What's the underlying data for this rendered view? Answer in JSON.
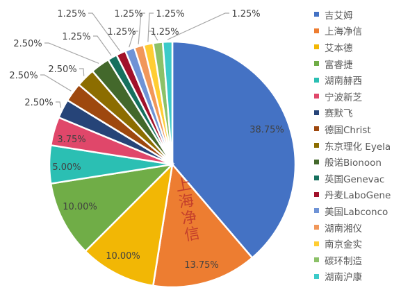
{
  "chart_data": {
    "type": "pie",
    "legend_position": "right",
    "start_angle": "12 o'clock, clockwise",
    "categories": [
      "吉艾姆",
      "上海净信",
      "艾本德",
      "富睿捷",
      "湖南赫西",
      "宁波新芝",
      "赛默飞",
      "德国Christ",
      "东京理化 Eyela",
      "般诺Bionoon",
      "英国Genevac",
      "丹麦LaboGene",
      "美国Labconco",
      "湖南湘仪",
      "南京金实",
      "碳环制造",
      "湖南沪康"
    ],
    "values": [
      38.75,
      13.75,
      10.0,
      10.0,
      5.0,
      3.75,
      2.5,
      2.5,
      2.5,
      2.5,
      1.25,
      1.25,
      1.25,
      1.25,
      1.25,
      1.25,
      1.25
    ],
    "labels": [
      "38.75%",
      "13.75%",
      "10.00%",
      "10.00%",
      "5.00%",
      "3.75%",
      "2.50%",
      "2.50%",
      "2.50%",
      "2.50%",
      "1.25%",
      "1.25%",
      "1.25%",
      "1.25%",
      "1.25%",
      "1.25%",
      "1.25%"
    ],
    "colors": [
      "#4472C4",
      "#ED7D31",
      "#F2B705",
      "#70AD47",
      "#2BBFB3",
      "#E0476A",
      "#264478",
      "#9E480E",
      "#8C6D00",
      "#43682B",
      "#16705E",
      "#A1112A",
      "#6F93D6",
      "#F1975A",
      "#FFCD33",
      "#8CC168",
      "#3CCBC9"
    ]
  },
  "watermark": "上海净信"
}
